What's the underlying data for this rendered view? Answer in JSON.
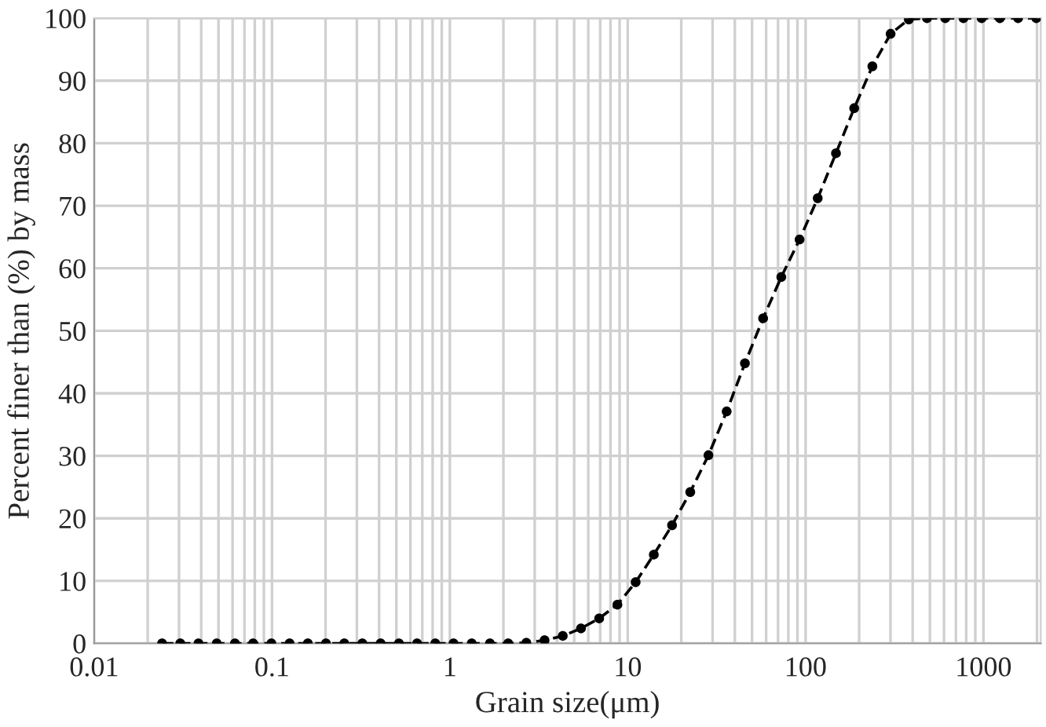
{
  "chart_data": {
    "type": "line",
    "xlabel": "Grain size(μm)",
    "ylabel": "Percent finer than (%) by mass",
    "log": "x",
    "x": [
      0.0241,
      0.0305,
      0.0386,
      0.0489,
      0.0619,
      0.0783,
      0.0992,
      0.1256,
      0.159,
      0.201,
      0.255,
      0.322,
      0.408,
      0.517,
      0.654,
      0.828,
      1.048,
      1.327,
      1.68,
      2.127,
      2.692,
      3.408,
      4.313,
      5.46,
      6.91,
      8.75,
      11.08,
      14.02,
      17.75,
      22.47,
      28.44,
      36.0,
      45.6,
      57.7,
      73.0,
      92.5,
      117.0,
      148.2,
      187.6,
      237.4,
      300.6,
      380.5,
      481.7,
      609.8,
      771.9,
      977,
      1237,
      1566,
      1982
    ],
    "series": [
      {
        "color": "#000000",
        "values": [
          0,
          0,
          0,
          0,
          0,
          0,
          0,
          0,
          0,
          0,
          0,
          0,
          0,
          0,
          0,
          0,
          0,
          0,
          0,
          0,
          0.1,
          0.5,
          1.2,
          2.4,
          4.0,
          6.2,
          9.8,
          14.2,
          18.9,
          24.2,
          30.1,
          37.1,
          44.8,
          52.0,
          58.6,
          64.6,
          71.2,
          78.4,
          85.6,
          92.3,
          97.5,
          99.8,
          100,
          100,
          100,
          100,
          100,
          100,
          100
        ]
      }
    ],
    "xlim": [
      0.01,
      2100
    ],
    "xticks": [
      0.01,
      0.1,
      1,
      10,
      100,
      1000
    ],
    "ylim": [
      0,
      100
    ],
    "yticks": [
      0,
      10,
      20,
      30,
      40,
      50,
      60,
      70,
      80,
      90,
      100
    ],
    "grid": true,
    "marker": "circle",
    "line_style": "dashed",
    "legend": false
  }
}
